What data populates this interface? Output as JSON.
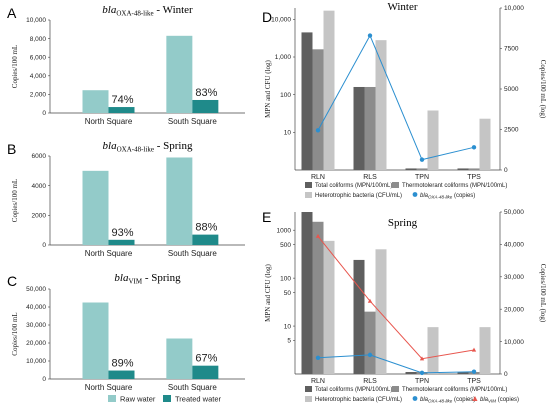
{
  "chart_data": [
    {
      "panel": "A",
      "type": "bar",
      "title": "bla",
      "title_sub": "OXA-48-like",
      "title_rest": " - Winter",
      "ylabel": "Copies/100 mL",
      "ylim": [
        0,
        10000
      ],
      "yticks": [
        0,
        2000,
        4000,
        6000,
        8000,
        10000
      ],
      "yticklabels": [
        "0",
        "2,000",
        "4,000",
        "6,000",
        "8,000",
        "10,000"
      ],
      "categories": [
        "North Square",
        "South Square"
      ],
      "series": [
        {
          "name": "Raw water",
          "values": [
            2450,
            8300
          ]
        },
        {
          "name": "Treated water",
          "values": [
            640,
            1400
          ]
        }
      ],
      "annotations": [
        "74%",
        "83%"
      ]
    },
    {
      "panel": "B",
      "type": "bar",
      "title": "bla",
      "title_sub": "OXA-48-like",
      "title_rest": " - Spring",
      "ylabel": "Copies/100 mL",
      "ylim": [
        0,
        6000
      ],
      "yticks": [
        0,
        2000,
        4000,
        6000
      ],
      "yticklabels": [
        "0",
        "2000",
        "4000",
        "6000"
      ],
      "categories": [
        "North Square",
        "South Square"
      ],
      "series": [
        {
          "name": "Raw water",
          "values": [
            5000,
            5900
          ]
        },
        {
          "name": "Treated water",
          "values": [
            350,
            700
          ]
        }
      ],
      "annotations": [
        "93%",
        "88%"
      ]
    },
    {
      "panel": "C",
      "type": "bar",
      "title": "bla",
      "title_sub": "VIM",
      "title_rest": " - Spring",
      "ylabel": "Copies/100 mL",
      "ylim": [
        0,
        50000
      ],
      "yticks": [
        0,
        10000,
        20000,
        30000,
        40000,
        50000
      ],
      "yticklabels": [
        "0",
        "10,000",
        "20,000",
        "30,000",
        "40,000",
        "50,000"
      ],
      "categories": [
        "North Square",
        "South Square"
      ],
      "series": [
        {
          "name": "Raw water",
          "values": [
            42500,
            22500
          ]
        },
        {
          "name": "Treated water",
          "values": [
            4700,
            7400
          ]
        }
      ],
      "annotations": [
        "89%",
        "67%"
      ]
    },
    {
      "panel": "D",
      "type": "bar",
      "title": "Winter",
      "ylabel": "MPN and CFU (log)",
      "ylabel2": "Copies/100 mL (log)",
      "yscale": "log",
      "ylim": [
        1,
        20000
      ],
      "yticks": [
        10,
        100,
        1000,
        10000
      ],
      "yticklabels": [
        "10",
        "100",
        "1,000",
        "10,000"
      ],
      "y2lim": [
        0,
        10000
      ],
      "y2ticks": [
        0,
        2500,
        5000,
        7500,
        10000
      ],
      "y2ticklabels": [
        "0",
        "2500",
        "5000",
        "7500",
        "10,000"
      ],
      "categories": [
        "RLN",
        "RLS",
        "TPN",
        "TPS"
      ],
      "series": [
        {
          "name": "Total coliforms (MPN/100mL)",
          "values": [
            4500,
            160,
            1.1,
            1.1
          ]
        },
        {
          "name": "Thermotolerant coliforms (MPN/100mL)",
          "values": [
            1600,
            160,
            1.1,
            1.1
          ]
        },
        {
          "name": "Heterotrophic bacteria (CFU/mL)",
          "values": [
            17000,
            2800,
            38,
            23
          ]
        }
      ],
      "line_series": [
        {
          "name": "bla",
          "name_sub": "OXA-48-like",
          "name_rest": " (copies)",
          "values": [
            2450,
            8300,
            640,
            1400
          ]
        }
      ],
      "legend": {
        "bars": [
          "Total coliforms (MPN/100mL)",
          "Thermotolerant coliforms (MPN/100mL)",
          "Heterotrophic bacteria (CFU/mL)"
        ]
      }
    },
    {
      "panel": "E",
      "type": "bar",
      "title": "Spring",
      "ylabel": "MPN and CFU (log)",
      "ylabel2": "Copies/100 mL (log)",
      "yscale": "log",
      "ylim": [
        1,
        2400
      ],
      "yticks": [
        5,
        10,
        50,
        100,
        500,
        1000
      ],
      "yticklabels": [
        "5",
        "10",
        "50",
        "100",
        "500",
        "1000"
      ],
      "y2lim": [
        0,
        50000
      ],
      "y2ticks": [
        0,
        10000,
        20000,
        30000,
        40000,
        50000
      ],
      "y2ticklabels": [
        "0",
        "10,000",
        "20,000",
        "30,000",
        "40,000",
        "50,000"
      ],
      "categories": [
        "RLN",
        "RLS",
        "TPN",
        "TPS"
      ],
      "series": [
        {
          "name": "Total coliforms (MPN/100mL)",
          "values": [
            2400,
            240,
            1.1,
            1.1
          ]
        },
        {
          "name": "Thermotolerant coliforms (MPN/100mL)",
          "values": [
            1500,
            20,
            1.1,
            1.1
          ]
        },
        {
          "name": "Heterotrophic bacteria (CFU/mL)",
          "values": [
            600,
            400,
            9.5,
            9.5
          ]
        }
      ],
      "line_series": [
        {
          "name": "bla",
          "name_sub": "OXA-48-like",
          "name_rest": " (copies)",
          "color": "#2b8fd0",
          "values": [
            5000,
            5900,
            350,
            700
          ]
        },
        {
          "name": "bla",
          "name_sub": "VIM",
          "name_rest": " (copies)",
          "color": "#e8564e",
          "values": [
            42500,
            22500,
            4700,
            7400
          ]
        }
      ],
      "legend": {
        "bars": [
          "Total coliforms (MPN/100mL)",
          "Thermotolerant coliforms (MPN/100mL)",
          "Heterotrophic bacteria (CFU/mL)"
        ]
      }
    }
  ],
  "bottom_legend": [
    "Raw water",
    "Treated water"
  ],
  "colors": {
    "raw": "#93cbc9",
    "treated": "#1f8a8a",
    "total": "#5f5f5f",
    "thermo": "#8c8c8c",
    "hetero": "#c5c5c5",
    "oxa": "#2b8fd0",
    "vim": "#e8564e"
  }
}
